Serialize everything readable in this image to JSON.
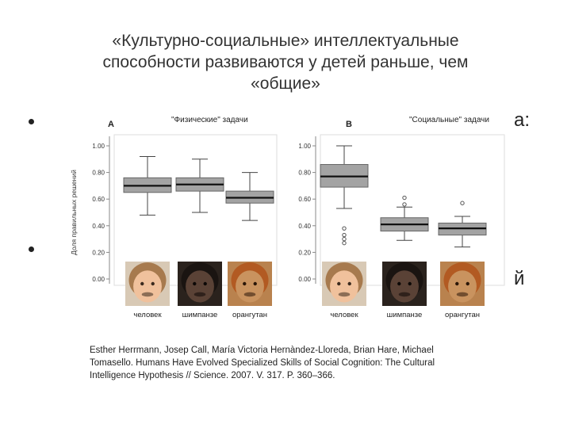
{
  "slide": {
    "title": "«Культурно-социальные» интеллектуальные\nспособности развиваются у детей раньше, чем\n«общие»",
    "right_fragments": [
      "а:",
      "й"
    ],
    "citation": [
      "Esther Herrmann, Josep Call, María Victoria Hernàndez-Lloreda, Brian Hare, Michael",
      "Tomasello. Humans Have Evolved Specialized Skills of Social Cognition: The Cultural",
      "Intelligence Hypothesis // Science. 2007. V. 317. P. 360–366."
    ]
  },
  "colors": {
    "box_fill": "#a3a3a3",
    "box_stroke": "#666666",
    "whisker": "#444444",
    "median": "#111111",
    "axis": "#888888"
  },
  "chart_data": [
    {
      "type": "boxplot",
      "panel_label": "A",
      "title": "\"Физические\" задачи",
      "ylabel": "Доля правильных решений",
      "ylim": [
        0,
        1
      ],
      "yticks": [
        "0.00",
        "0.20",
        "0.40",
        "0.60",
        "0.80",
        "1.00"
      ],
      "categories": [
        "человек",
        "шимпанзе",
        "орангутан"
      ],
      "category_icons": [
        "human-child-photo",
        "chimpanzee-photo",
        "orangutan-photo"
      ],
      "boxes": [
        {
          "min": 0.48,
          "q1": 0.65,
          "median": 0.7,
          "q3": 0.76,
          "max": 0.92,
          "outliers": []
        },
        {
          "min": 0.5,
          "q1": 0.66,
          "median": 0.71,
          "q3": 0.76,
          "max": 0.9,
          "outliers": []
        },
        {
          "min": 0.44,
          "q1": 0.57,
          "median": 0.61,
          "q3": 0.66,
          "max": 0.8,
          "outliers": []
        }
      ]
    },
    {
      "type": "boxplot",
      "panel_label": "B",
      "title": "\"Социальные\" задачи",
      "ylabel": "",
      "ylim": [
        0,
        1
      ],
      "yticks": [
        "0.00",
        "0.20",
        "0.40",
        "0.60",
        "0.80",
        "1.00"
      ],
      "categories": [
        "человек",
        "шимпанзе",
        "орангутан"
      ],
      "category_icons": [
        "human-child-photo",
        "chimpanzee-photo",
        "orangutan-photo"
      ],
      "boxes": [
        {
          "min": 0.53,
          "q1": 0.69,
          "median": 0.77,
          "q3": 0.86,
          "max": 1.0,
          "outliers": [
            0.38,
            0.33,
            0.3,
            0.27
          ]
        },
        {
          "min": 0.29,
          "q1": 0.36,
          "median": 0.41,
          "q3": 0.46,
          "max": 0.54,
          "outliers": [
            0.61,
            0.56
          ]
        },
        {
          "min": 0.24,
          "q1": 0.33,
          "median": 0.38,
          "q3": 0.42,
          "max": 0.47,
          "outliers": [
            0.57
          ]
        }
      ]
    }
  ]
}
